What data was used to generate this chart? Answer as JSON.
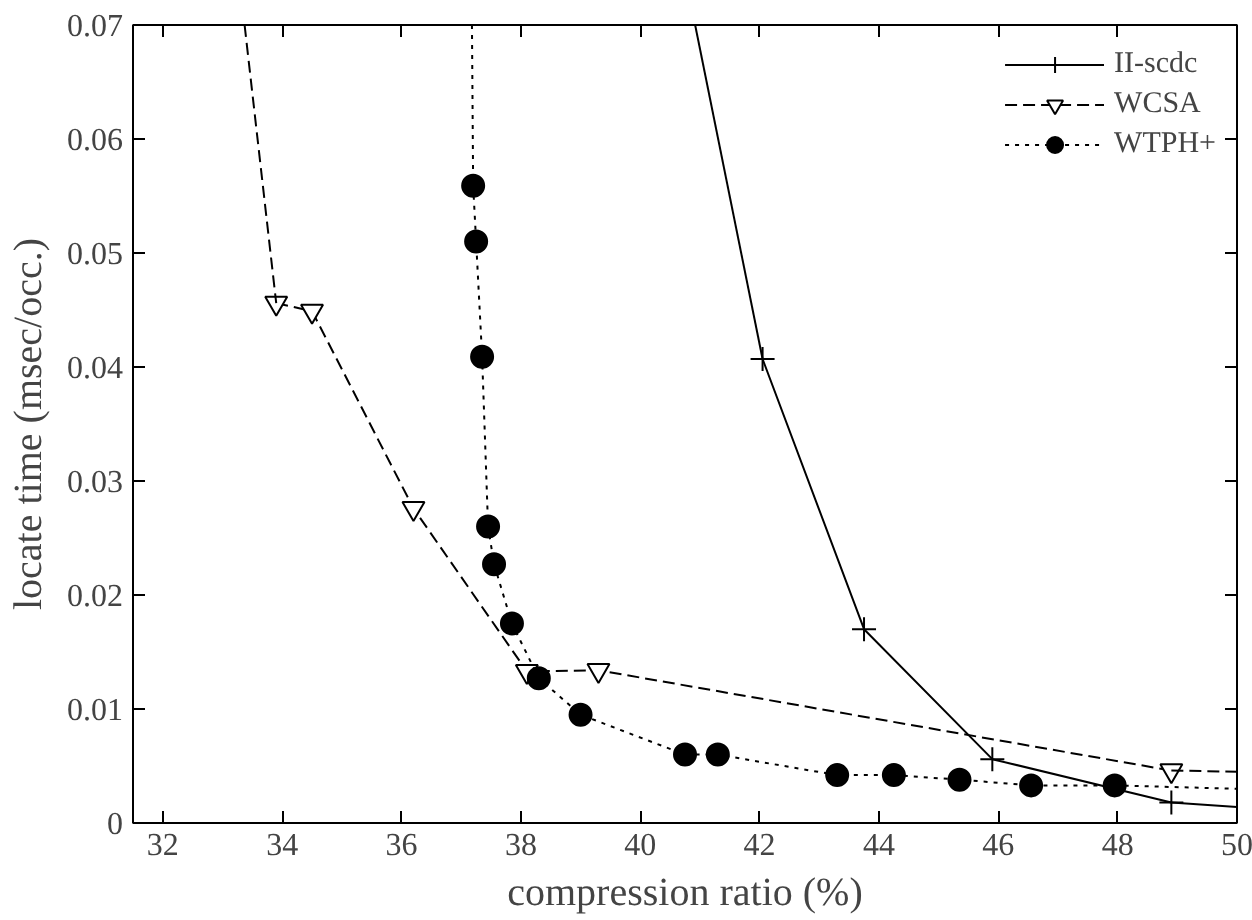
{
  "chart_data": {
    "type": "line",
    "xlabel": "compression ratio (%)",
    "ylabel": "locate time (msec/occ.)",
    "xlim": [
      31.5,
      50
    ],
    "ylim": [
      0,
      0.07
    ],
    "xticks": [
      32,
      34,
      36,
      38,
      40,
      42,
      44,
      46,
      48,
      50
    ],
    "yticks": [
      0,
      0.01,
      0.02,
      0.03,
      0.04,
      0.05,
      0.06,
      0.07
    ],
    "grid": false,
    "legend": "top right",
    "series": [
      {
        "name": "II-scdc",
        "color": "#000000",
        "marker": "cross",
        "line_style": "solid",
        "x": [
          42.05,
          43.75,
          45.9,
          48.9
        ],
        "values": [
          0.0407,
          0.017,
          0.0056,
          0.0018
        ]
      },
      {
        "name": "WCSA",
        "color": "#000000",
        "marker": "triangle",
        "line_style": "dashed",
        "x": [
          33.9,
          34.5,
          36.2,
          38.1,
          39.3,
          48.9
        ],
        "values": [
          0.0456,
          0.0449,
          0.0276,
          0.0133,
          0.0134,
          0.0046
        ]
      },
      {
        "name": "WTPH+",
        "color": "#000000",
        "marker": "circle",
        "line_style": "dotted",
        "x": [
          37.2,
          37.25,
          37.35,
          37.45,
          37.55,
          37.85,
          38.3,
          39.0,
          40.75,
          41.3,
          43.3,
          44.25,
          45.35,
          46.55,
          47.95
        ],
        "values": [
          0.0559,
          0.051,
          0.0409,
          0.026,
          0.0227,
          0.0175,
          0.0127,
          0.0095,
          0.006,
          0.006,
          0.0042,
          0.0042,
          0.0038,
          0.0033,
          0.0033
        ]
      },
      {
        "color": "#000000",
        "marker": "none",
        "line_style": "solid",
        "x": [
          40.92,
          42.05
        ],
        "values": [
          0.07,
          0.0407
        ]
      },
      {
        "color": "#000000",
        "marker": "none",
        "line_style": "solid",
        "x": [
          48.9,
          50
        ],
        "values": [
          0.0018,
          0.0014
        ]
      },
      {
        "color": "#000000",
        "marker": "none",
        "line_style": "dashed",
        "x": [
          33.37,
          33.9
        ],
        "values": [
          0.07,
          0.0456
        ]
      },
      {
        "color": "#000000",
        "marker": "none",
        "line_style": "dashed",
        "x": [
          48.9,
          50
        ],
        "values": [
          0.0046,
          0.0045
        ]
      },
      {
        "color": "#000000",
        "marker": "none",
        "line_style": "dotted",
        "x": [
          37.18,
          37.2
        ],
        "values": [
          0.07,
          0.0559
        ]
      },
      {
        "color": "#000000",
        "marker": "none",
        "line_style": "dotted",
        "x": [
          47.95,
          50
        ],
        "values": [
          0.0033,
          0.003
        ]
      }
    ]
  }
}
